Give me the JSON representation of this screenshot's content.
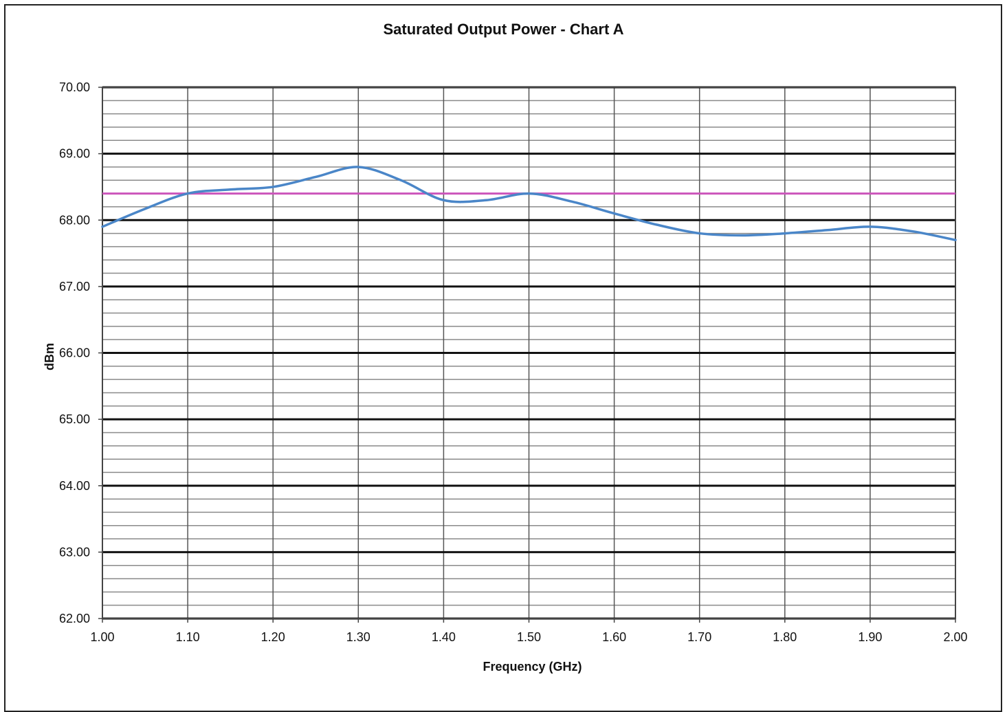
{
  "chart_data": {
    "type": "line",
    "title": "Saturated Output Power - Chart A",
    "xlabel": "Frequency (GHz)",
    "ylabel": "dBm",
    "xlim": [
      1.0,
      2.0
    ],
    "ylim": [
      62.0,
      70.0
    ],
    "x_ticks": [
      "1.00",
      "1.10",
      "1.20",
      "1.30",
      "1.40",
      "1.50",
      "1.60",
      "1.70",
      "1.80",
      "1.90",
      "2.00"
    ],
    "y_ticks": [
      "70.00",
      "69.00",
      "68.00",
      "67.00",
      "66.00",
      "65.00",
      "64.00",
      "63.00",
      "62.00"
    ],
    "y_major_step": 1.0,
    "y_minor_step": 0.2,
    "grid": true,
    "legend": "none",
    "series": [
      {
        "color": "#4a86c8",
        "x": [
          1.0,
          1.05,
          1.1,
          1.15,
          1.2,
          1.25,
          1.3,
          1.35,
          1.4,
          1.45,
          1.5,
          1.55,
          1.6,
          1.65,
          1.7,
          1.75,
          1.8,
          1.85,
          1.9,
          1.95,
          2.0
        ],
        "y": [
          67.9,
          68.17,
          68.4,
          68.46,
          68.5,
          68.65,
          68.8,
          68.6,
          68.3,
          68.3,
          68.4,
          68.28,
          68.1,
          67.93,
          67.8,
          67.77,
          67.8,
          67.85,
          67.9,
          67.83,
          67.7
        ]
      }
    ],
    "reference_lines": [
      {
        "y": 68.4,
        "color": "#cc55bb"
      }
    ]
  }
}
